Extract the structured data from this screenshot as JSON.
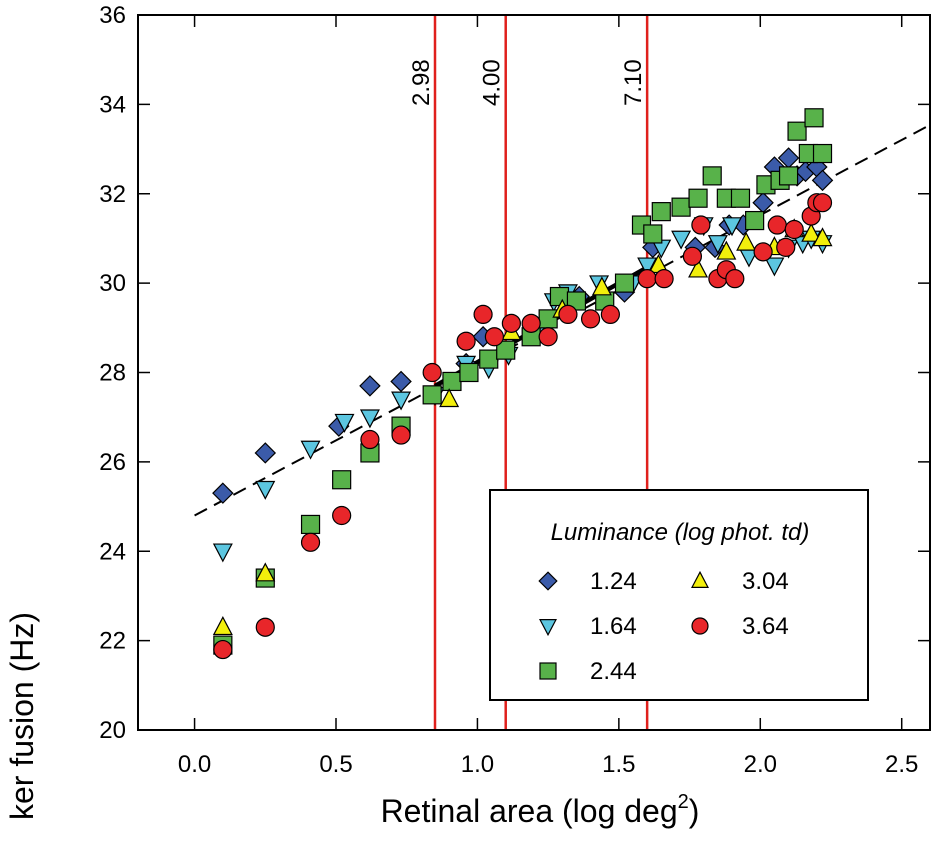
{
  "chart_data": {
    "type": "scatter",
    "x_label": [
      "Retinal area (log deg",
      "2",
      ")"
    ],
    "y_label": "ker fusion (Hz)",
    "xlim": [
      -0.2,
      2.6
    ],
    "ylim": [
      20,
      36
    ],
    "xticks": [
      {
        "value": 0,
        "label": "0.0"
      },
      0.5,
      {
        "value": 1,
        "label": "1.0"
      },
      1.5,
      {
        "value": 2,
        "label": "2.0"
      },
      2.5
    ],
    "yticks": [
      20,
      22,
      24,
      26,
      28,
      30,
      32,
      34,
      36
    ],
    "legend_title": "Luminance (log phot. td)",
    "legend_position": "lower right",
    "vlines": [
      {
        "x": 0.85,
        "label": "2.98",
        "color": "#e0201c"
      },
      {
        "x": 1.1,
        "label": "4.00",
        "color": "#e0201c"
      },
      {
        "x": 1.6,
        "label": "7.10",
        "color": "#e0201c"
      }
    ],
    "fit_lines": [
      {
        "style": "dashed",
        "x": [
          0,
          2.6
        ],
        "y": [
          24.8,
          33.54
        ]
      },
      {
        "style": "solid",
        "x": [
          0.85,
          1.6
        ],
        "y": [
          27.7,
          30.35
        ]
      }
    ],
    "series": [
      {
        "name": "1.24",
        "color": "#3b5ba9",
        "marker": "diamond",
        "x": [
          0.1,
          0.25,
          0.51,
          0.62,
          0.73,
          0.96,
          1.02,
          1.36,
          1.52,
          1.62,
          1.77,
          1.84,
          1.89,
          1.94,
          2.01,
          2.05,
          2.1,
          2.13,
          2.16,
          2.2,
          2.22
        ],
        "values": [
          25.3,
          26.2,
          26.8,
          27.7,
          27.8,
          28.2,
          28.8,
          29.7,
          29.8,
          30.8,
          30.8,
          30.8,
          31.3,
          31.3,
          31.8,
          32.6,
          32.8,
          32.4,
          32.5,
          32.6,
          32.3
        ]
      },
      {
        "name": "1.64",
        "color": "#5cc6e0",
        "marker": "triangle-down",
        "x": [
          0.1,
          0.25,
          0.41,
          0.53,
          0.62,
          0.73,
          0.85,
          0.96,
          1.04,
          1.11,
          1.21,
          1.27,
          1.32,
          1.43,
          1.55,
          1.6,
          1.65,
          1.72,
          1.8,
          1.85,
          1.9,
          1.96,
          2.05,
          2.1,
          2.15,
          2.18,
          2.22
        ],
        "values": [
          24.0,
          25.4,
          26.3,
          26.9,
          27.0,
          27.4,
          27.5,
          28.2,
          28.1,
          28.4,
          28.9,
          29.6,
          29.8,
          30.0,
          30.0,
          30.4,
          30.8,
          31.0,
          31.3,
          30.9,
          31.3,
          30.6,
          30.4,
          30.8,
          30.9,
          31.0,
          30.9
        ]
      },
      {
        "name": "2.44",
        "color": "#58b24a",
        "marker": "square",
        "x": [
          0.1,
          0.25,
          0.41,
          0.52,
          0.62,
          0.73,
          0.84,
          0.91,
          0.97,
          1.04,
          1.1,
          1.19,
          1.25,
          1.29,
          1.35,
          1.45,
          1.52,
          1.58,
          1.62,
          1.65,
          1.72,
          1.78,
          1.83,
          1.88,
          1.93,
          1.98,
          2.02,
          2.07,
          2.1,
          2.13,
          2.17,
          2.19,
          2.22
        ],
        "values": [
          21.9,
          23.4,
          24.6,
          25.6,
          26.2,
          26.8,
          27.5,
          27.8,
          28.0,
          28.3,
          28.5,
          28.8,
          29.2,
          29.7,
          29.6,
          29.6,
          30.0,
          31.3,
          31.1,
          31.6,
          31.7,
          31.9,
          32.4,
          31.9,
          31.9,
          31.4,
          32.2,
          32.3,
          32.4,
          33.4,
          32.9,
          33.7,
          32.9
        ]
      },
      {
        "name": "3.04",
        "color": "#f2ef0c",
        "marker": "triangle-up",
        "x": [
          0.1,
          0.25,
          0.9,
          1.12,
          1.3,
          1.44,
          1.64,
          1.78,
          1.88,
          1.95,
          2.05,
          2.12,
          2.18,
          2.22
        ],
        "values": [
          22.3,
          23.5,
          27.4,
          28.9,
          29.4,
          29.9,
          30.4,
          30.3,
          30.7,
          30.9,
          30.8,
          31.2,
          31.1,
          31.0
        ]
      },
      {
        "name": "3.64",
        "color": "#e8262a",
        "marker": "circle",
        "x": [
          0.1,
          0.25,
          0.41,
          0.52,
          0.62,
          0.73,
          0.84,
          0.96,
          1.02,
          1.06,
          1.12,
          1.19,
          1.25,
          1.32,
          1.4,
          1.47,
          1.6,
          1.66,
          1.76,
          1.79,
          1.85,
          1.88,
          1.91,
          2.01,
          2.06,
          2.09,
          2.12,
          2.18,
          2.2,
          2.22
        ],
        "values": [
          21.8,
          22.3,
          24.2,
          24.8,
          26.5,
          26.6,
          28.0,
          28.7,
          29.3,
          28.8,
          29.1,
          29.1,
          28.8,
          29.3,
          29.2,
          29.3,
          30.1,
          30.1,
          30.6,
          31.3,
          30.1,
          30.3,
          30.1,
          30.7,
          31.3,
          30.8,
          31.2,
          31.5,
          31.8,
          31.8
        ]
      }
    ]
  }
}
